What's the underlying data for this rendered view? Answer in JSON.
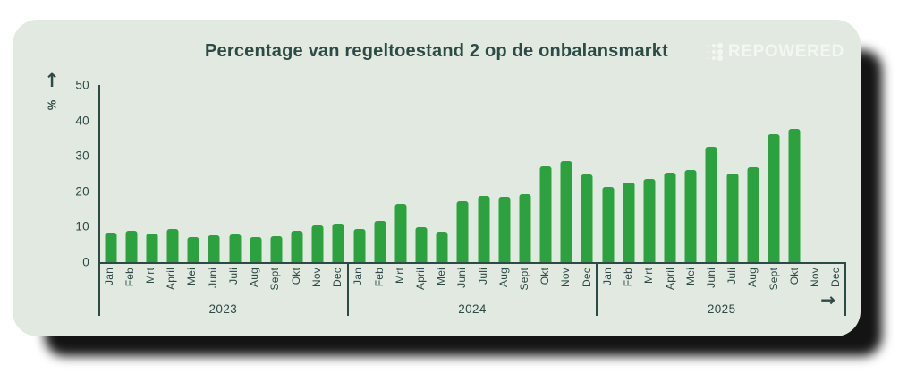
{
  "header": {
    "title": "Percentage van regeltoestand 2 op de onbalansmarkt",
    "logo_text": "REPOWERED"
  },
  "axes": {
    "up_arrow": "↑",
    "right_arrow": "→",
    "y_unit_label": "%"
  },
  "colors": {
    "bar": "#2ba23d",
    "teal": "#2a4b46",
    "card_bg": "#e2e9e1",
    "logo_white": "#f3f7f1",
    "page_bg": "#ffffff"
  },
  "chart_data": {
    "type": "bar",
    "title": "Percentage van regeltoestand 2 op de onbalansmarkt",
    "ylabel": "%",
    "ylim": [
      0,
      50
    ],
    "yticks": [
      0,
      10,
      20,
      30,
      40,
      50
    ],
    "grid": false,
    "legend": "none",
    "bar_color": "#2ba23d",
    "months": [
      "Jan",
      "Feb",
      "Mrt",
      "April",
      "Mei",
      "Juni",
      "Juli",
      "Aug",
      "Sept",
      "Okt",
      "Nov",
      "Dec"
    ],
    "groups": [
      {
        "year": "2023",
        "values": [
          8.4,
          8.8,
          8.0,
          9.4,
          7.1,
          7.5,
          7.8,
          7.1,
          7.3,
          8.8,
          10.4,
          10.9
        ]
      },
      {
        "year": "2024",
        "values": [
          9.4,
          11.7,
          16.4,
          9.8,
          8.7,
          17.2,
          18.6,
          18.4,
          19.1,
          27.0,
          28.5,
          24.8
        ]
      },
      {
        "year": "2025",
        "values": [
          21.2,
          22.4,
          23.4,
          25.3,
          26.1,
          32.6,
          25.0,
          26.7,
          36.2,
          37.6,
          null,
          null
        ]
      }
    ]
  }
}
